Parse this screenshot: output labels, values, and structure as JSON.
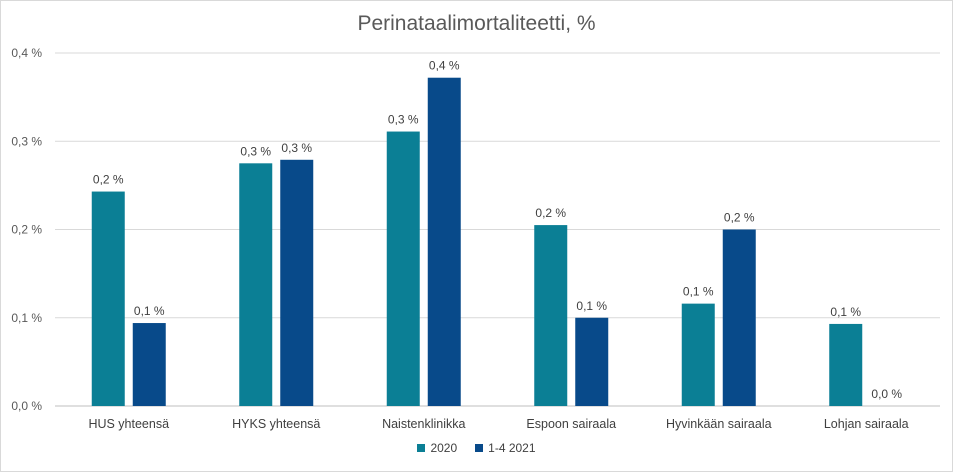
{
  "chart_data": {
    "type": "bar",
    "title": "Perinataalimortaliteetti, %",
    "categories": [
      "HUS yhteensä",
      "HYKS yhteensä",
      "Naistenklinikka",
      "Espoon sairaala",
      "Hyvinkään sairaala",
      "Lohjan sairaala"
    ],
    "series": [
      {
        "name": "2020",
        "color": "#0B7F95",
        "values": [
          0.243,
          0.275,
          0.311,
          0.205,
          0.116,
          0.093
        ],
        "labels": [
          "0,2 %",
          "0,3 %",
          "0,3 %",
          "0,2 %",
          "0,1 %",
          "0,1 %"
        ]
      },
      {
        "name": "1-4 2021",
        "color": "#084A8A",
        "values": [
          0.094,
          0.279,
          0.372,
          0.1,
          0.2,
          0.0
        ],
        "labels": [
          "0,1 %",
          "0,3 %",
          "0,4 %",
          "0,1 %",
          "0,2 %",
          "0,0 %"
        ]
      }
    ],
    "y_ticks": [
      0,
      0.1,
      0.2,
      0.3,
      0.4
    ],
    "y_tick_labels": [
      "0,0 %",
      "0,1 %",
      "0,2 %",
      "0,3 %",
      "0,4 %"
    ],
    "ylim": [
      0,
      0.4
    ],
    "grid": true,
    "legend_position": "bottom"
  }
}
